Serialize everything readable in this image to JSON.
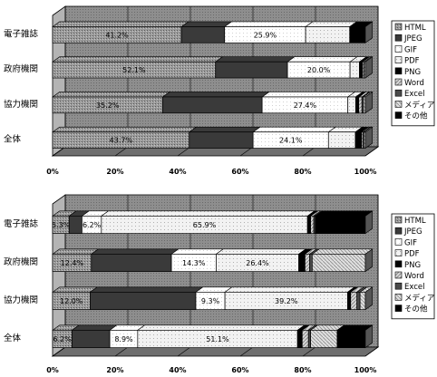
{
  "chart_data": [
    {
      "type": "bar",
      "orientation": "horizontal",
      "stacked": "100%",
      "style": "3d",
      "categories": [
        "電子雑誌",
        "政府機関",
        "協力機関",
        "全体"
      ],
      "x_ticks": [
        "0%",
        "20%",
        "40%",
        "60%",
        "80%",
        "100%"
      ],
      "xlim": [
        0,
        100
      ],
      "grid": true,
      "legend_position": "right",
      "series": [
        {
          "name": "HTML",
          "color": "#8c8c8c",
          "values": [
            41.2,
            52.1,
            35.2,
            43.7
          ],
          "labels": [
            "41.2%",
            "52.1%",
            "35.2%",
            "43.7%"
          ]
        },
        {
          "name": "JPEG",
          "color": "#3c3c3c",
          "values": [
            13.8,
            23.0,
            31.8,
            20.4
          ],
          "labels": [
            "",
            "",
            "",
            ""
          ]
        },
        {
          "name": "GIF",
          "color": "#ffffff",
          "values": [
            25.9,
            20.0,
            27.4,
            24.1
          ],
          "labels": [
            "25.9%",
            "20.0%",
            "27.4%",
            "24.1%"
          ]
        },
        {
          "name": "PDF",
          "color": "#ffffff",
          "values": [
            14.1,
            3.0,
            2.5,
            8.6
          ],
          "labels": [
            "",
            "",
            "",
            ""
          ]
        },
        {
          "name": "PNG",
          "color": "#000000",
          "values": [
            5.0,
            1.0,
            1.0,
            2.0
          ],
          "labels": [
            "",
            "",
            "",
            ""
          ]
        },
        {
          "name": "Word",
          "color": "#a8a8a8",
          "values": [
            0,
            0.5,
            1.0,
            0.5
          ],
          "labels": [
            "",
            "",
            "",
            ""
          ]
        },
        {
          "name": "Excel",
          "color": "#505050",
          "values": [
            0,
            0,
            0.5,
            0.2
          ],
          "labels": [
            "",
            "",
            "",
            ""
          ]
        },
        {
          "name": "メディア",
          "color": "#c8c8c8",
          "values": [
            0,
            0.4,
            0.6,
            0.5
          ],
          "labels": [
            "",
            "",
            "",
            ""
          ]
        },
        {
          "name": "その他",
          "color": "#000000",
          "values": [
            0,
            0,
            0,
            0
          ],
          "labels": [
            "",
            "",
            "",
            ""
          ]
        }
      ]
    },
    {
      "type": "bar",
      "orientation": "horizontal",
      "stacked": "100%",
      "style": "3d",
      "categories": [
        "電子雑誌",
        "政府機関",
        "協力機関",
        "全体"
      ],
      "x_ticks": [
        "0%",
        "20%",
        "40%",
        "60%",
        "80%",
        "100%"
      ],
      "xlim": [
        0,
        100
      ],
      "grid": true,
      "legend_position": "right",
      "series": [
        {
          "name": "HTML",
          "color": "#8c8c8c",
          "values": [
            5.3,
            12.4,
            12.0,
            6.2
          ],
          "labels": [
            "5.3%",
            "12.4%",
            "12.0%",
            "6.2%"
          ]
        },
        {
          "name": "JPEG",
          "color": "#3c3c3c",
          "values": [
            4.1,
            25.6,
            33.8,
            12.1
          ],
          "labels": [
            "",
            "",
            "",
            ""
          ]
        },
        {
          "name": "GIF",
          "color": "#ffffff",
          "values": [
            6.2,
            14.3,
            9.3,
            8.9
          ],
          "labels": [
            "6.2%",
            "14.3%",
            "9.3%",
            "8.9%"
          ]
        },
        {
          "name": "PDF",
          "color": "#ffffff",
          "values": [
            65.9,
            26.4,
            39.2,
            51.1
          ],
          "labels": [
            "65.9%",
            "26.4%",
            "39.2%",
            "51.1%"
          ]
        },
        {
          "name": "PNG",
          "color": "#000000",
          "values": [
            1.0,
            2.0,
            1.0,
            1.5
          ],
          "labels": [
            "",
            "",
            "",
            ""
          ]
        },
        {
          "name": "Word",
          "color": "#a8a8a8",
          "values": [
            1.0,
            1.5,
            2.0,
            2.0
          ],
          "labels": [
            "",
            "",
            "",
            ""
          ]
        },
        {
          "name": "Excel",
          "color": "#505050",
          "values": [
            0.5,
            0.8,
            1.0,
            0.7
          ],
          "labels": [
            "",
            "",
            "",
            ""
          ]
        },
        {
          "name": "メディア",
          "color": "#c8c8c8",
          "values": [
            0,
            17.0,
            1.7,
            8.5
          ],
          "labels": [
            "",
            "",
            "",
            ""
          ]
        },
        {
          "name": "その他",
          "color": "#000000",
          "values": [
            16.0,
            0,
            0,
            9.0
          ],
          "labels": [
            "",
            "",
            "",
            ""
          ]
        }
      ]
    }
  ]
}
